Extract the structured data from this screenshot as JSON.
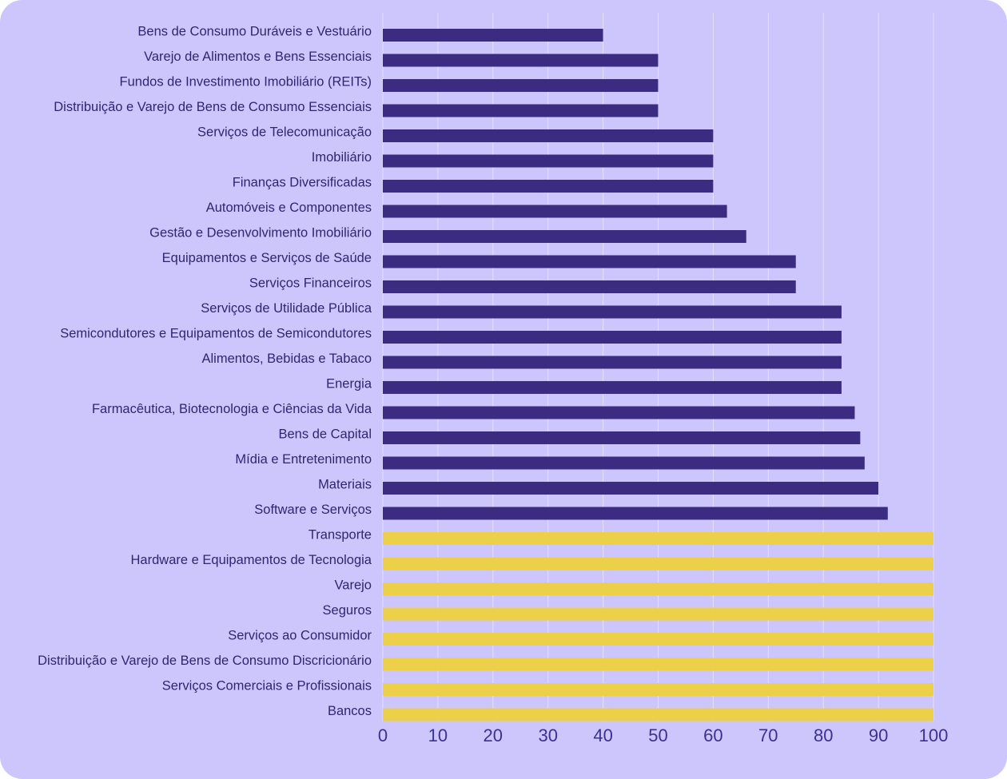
{
  "chart_data": {
    "type": "bar",
    "orientation": "horizontal",
    "categories": [
      "Bens de Consumo Duráveis e Vestuário",
      "Varejo de Alimentos e Bens Essenciais",
      "Fundos de Investimento Imobiliário (REITs)",
      "Distribuição e Varejo de Bens de Consumo Essenciais",
      "Serviços de Telecomunicação",
      "Imobiliário",
      "Finanças Diversificadas",
      "Automóveis e Componentes",
      "Gestão e Desenvolvimento Imobiliário",
      "Equipamentos e Serviços de Saúde",
      "Serviços Financeiros",
      "Serviços de Utilidade Pública",
      "Semicondutores e Equipamentos de Semicondutores",
      "Alimentos, Bebidas e Tabaco",
      "Energia",
      "Farmacêutica, Biotecnologia e Ciências da Vida",
      "Bens de Capital",
      "Mídia e Entretenimento",
      "Materiais",
      "Software e Serviços",
      "Transporte",
      "Hardware e Equipamentos de Tecnologia",
      "Varejo",
      "Seguros",
      "Serviços ao Consumidor",
      "Distribuição e Varejo de Bens de Consumo Discricionário",
      "Serviços Comerciais e Profissionais",
      "Bancos"
    ],
    "values": [
      40,
      50,
      50,
      50,
      60,
      60,
      60,
      62.5,
      66,
      75,
      75,
      83.3,
      83.3,
      83.3,
      83.3,
      85.7,
      86.7,
      87.5,
      90,
      91.7,
      100,
      100,
      100,
      100,
      100,
      100,
      100,
      100
    ],
    "bar_colors": [
      "#3b2c82",
      "#3b2c82",
      "#3b2c82",
      "#3b2c82",
      "#3b2c82",
      "#3b2c82",
      "#3b2c82",
      "#3b2c82",
      "#3b2c82",
      "#3b2c82",
      "#3b2c82",
      "#3b2c82",
      "#3b2c82",
      "#3b2c82",
      "#3b2c82",
      "#3b2c82",
      "#3b2c82",
      "#3b2c82",
      "#3b2c82",
      "#3b2c82",
      "#ecd04a",
      "#ecd04a",
      "#ecd04a",
      "#ecd04a",
      "#ecd04a",
      "#ecd04a",
      "#ecd04a",
      "#ecd04a"
    ],
    "xticks": [
      0,
      10,
      20,
      30,
      40,
      50,
      60,
      70,
      80,
      90,
      100
    ],
    "xlim": [
      0,
      100
    ],
    "grid": "vertical",
    "title": "",
    "xlabel": "",
    "ylabel": ""
  },
  "colors": {
    "background": "#cdc6fc",
    "primary_bar": "#3b2c82",
    "highlight_bar": "#ecd04a",
    "gridline": "#e4e0fb",
    "text": "#2e2670"
  }
}
